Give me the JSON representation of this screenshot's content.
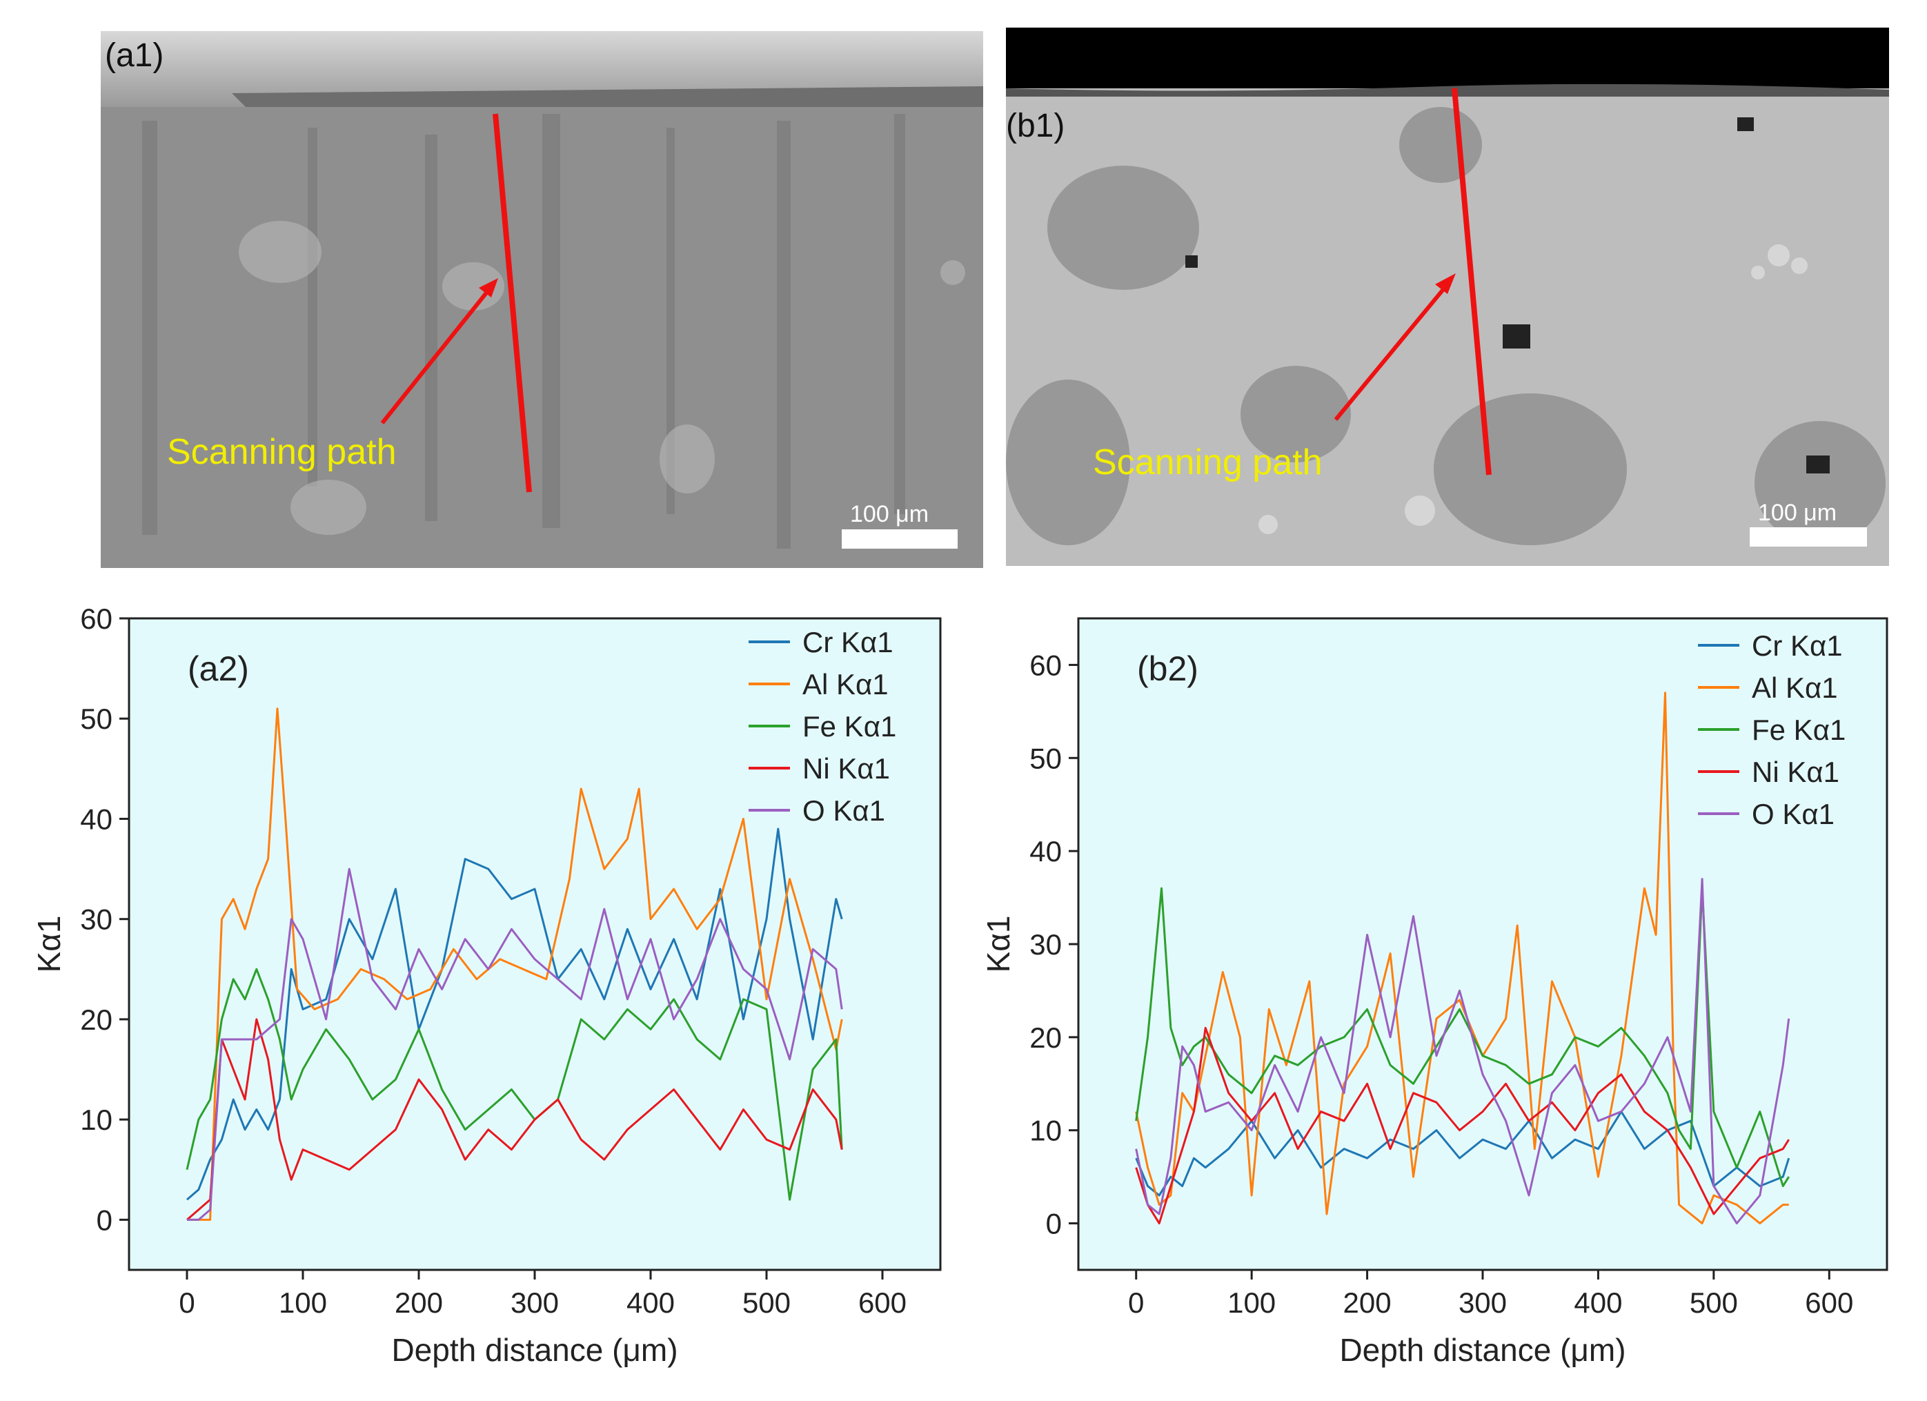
{
  "sem_panels": [
    {
      "label": "(a1)",
      "annotation": "Scanning path",
      "scale_bar": "100 μm"
    },
    {
      "label": "(b1)",
      "annotation": "Scanning path",
      "scale_bar": "100 μm"
    }
  ],
  "colors": {
    "Cr": "#1f77b4",
    "Al": "#ff7f0e",
    "Fe": "#2ca02c",
    "Ni": "#e8181f",
    "O": "#9b5fc0",
    "plot_bg": "#e3fafc",
    "scan_line": "#ee1111",
    "annotation": "#f2ee00"
  },
  "chart_data": [
    {
      "type": "line",
      "title": "(a2)",
      "xlabel": "Depth distance (μm)",
      "ylabel": "Kα1",
      "xlim": [
        -50,
        650
      ],
      "ylim": [
        -5,
        60
      ],
      "xticks": [
        0,
        100,
        200,
        300,
        400,
        500,
        600
      ],
      "yticks": [
        0,
        10,
        20,
        30,
        40,
        50,
        60
      ],
      "legend": "top-right",
      "series": [
        {
          "name": "Cr Kα1",
          "color": "#1f77b4",
          "x": [
            0,
            10,
            20,
            30,
            40,
            50,
            60,
            70,
            80,
            90,
            100,
            120,
            140,
            160,
            180,
            200,
            220,
            240,
            260,
            280,
            300,
            320,
            340,
            360,
            380,
            400,
            420,
            440,
            460,
            480,
            500,
            510,
            520,
            540,
            560,
            565
          ],
          "y": [
            2,
            3,
            6,
            8,
            12,
            9,
            11,
            9,
            12,
            25,
            21,
            22,
            30,
            26,
            33,
            19,
            25,
            36,
            35,
            32,
            33,
            24,
            27,
            22,
            29,
            23,
            28,
            22,
            33,
            20,
            30,
            39,
            30,
            18,
            32,
            30
          ]
        },
        {
          "name": "Al Kα1",
          "color": "#ff7f0e",
          "x": [
            0,
            10,
            20,
            30,
            40,
            50,
            60,
            70,
            78,
            85,
            95,
            110,
            130,
            150,
            170,
            190,
            210,
            230,
            250,
            270,
            290,
            310,
            330,
            340,
            360,
            380,
            390,
            400,
            420,
            440,
            460,
            480,
            500,
            520,
            540,
            560,
            565
          ],
          "y": [
            0,
            0,
            0,
            30,
            32,
            29,
            33,
            36,
            51,
            40,
            23,
            21,
            22,
            25,
            24,
            22,
            23,
            27,
            24,
            26,
            25,
            24,
            34,
            43,
            35,
            38,
            43,
            30,
            33,
            29,
            32,
            40,
            22,
            34,
            26,
            17,
            20
          ]
        },
        {
          "name": "Fe Kα1",
          "color": "#2ca02c",
          "x": [
            0,
            10,
            20,
            30,
            40,
            50,
            60,
            70,
            80,
            90,
            100,
            120,
            140,
            160,
            180,
            200,
            220,
            240,
            260,
            280,
            300,
            320,
            340,
            360,
            380,
            400,
            420,
            440,
            460,
            480,
            500,
            520,
            540,
            560,
            565
          ],
          "y": [
            5,
            10,
            12,
            20,
            24,
            22,
            25,
            22,
            18,
            12,
            15,
            19,
            16,
            12,
            14,
            19,
            13,
            9,
            11,
            13,
            10,
            12,
            20,
            18,
            21,
            19,
            22,
            18,
            16,
            22,
            21,
            2,
            15,
            18,
            7
          ]
        },
        {
          "name": "Ni Kα1",
          "color": "#e8181f",
          "x": [
            0,
            10,
            20,
            30,
            40,
            50,
            60,
            70,
            80,
            90,
            100,
            120,
            140,
            160,
            180,
            200,
            220,
            240,
            260,
            280,
            300,
            320,
            340,
            360,
            380,
            400,
            420,
            440,
            460,
            480,
            500,
            520,
            540,
            560,
            565
          ],
          "y": [
            0,
            1,
            2,
            18,
            15,
            12,
            20,
            16,
            8,
            4,
            7,
            6,
            5,
            7,
            9,
            14,
            11,
            6,
            9,
            7,
            10,
            12,
            8,
            6,
            9,
            11,
            13,
            10,
            7,
            11,
            8,
            7,
            13,
            10,
            7
          ]
        },
        {
          "name": "O Kα1",
          "color": "#9b5fc0",
          "x": [
            0,
            10,
            20,
            30,
            40,
            50,
            60,
            70,
            80,
            90,
            100,
            120,
            140,
            160,
            180,
            200,
            220,
            240,
            260,
            280,
            300,
            320,
            340,
            360,
            380,
            400,
            420,
            440,
            460,
            480,
            500,
            520,
            540,
            560,
            565
          ],
          "y": [
            0,
            0,
            1,
            18,
            18,
            18,
            18,
            19,
            20,
            30,
            28,
            20,
            35,
            24,
            21,
            27,
            23,
            28,
            25,
            29,
            26,
            24,
            22,
            31,
            22,
            28,
            20,
            24,
            30,
            25,
            23,
            16,
            27,
            25,
            21
          ]
        }
      ]
    },
    {
      "type": "line",
      "title": "(b2)",
      "xlabel": "Depth distance (μm)",
      "ylabel": "Kα1",
      "xlim": [
        -50,
        650
      ],
      "ylim": [
        -5,
        65
      ],
      "xticks": [
        0,
        100,
        200,
        300,
        400,
        500,
        600
      ],
      "yticks": [
        0,
        10,
        20,
        30,
        40,
        50,
        60
      ],
      "legend": "top-right",
      "series": [
        {
          "name": "Cr Kα1",
          "color": "#1f77b4",
          "x": [
            0,
            10,
            20,
            30,
            40,
            50,
            60,
            80,
            100,
            120,
            140,
            160,
            180,
            200,
            220,
            240,
            260,
            280,
            300,
            320,
            340,
            360,
            380,
            400,
            420,
            440,
            460,
            480,
            500,
            520,
            540,
            560,
            565
          ],
          "y": [
            7,
            4,
            3,
            5,
            4,
            7,
            6,
            8,
            11,
            7,
            10,
            6,
            8,
            7,
            9,
            8,
            10,
            7,
            9,
            8,
            11,
            7,
            9,
            8,
            12,
            8,
            10,
            11,
            4,
            6,
            4,
            5,
            7
          ]
        },
        {
          "name": "Al Kα1",
          "color": "#ff7f0e",
          "x": [
            0,
            10,
            20,
            30,
            40,
            50,
            60,
            75,
            90,
            100,
            115,
            130,
            150,
            165,
            180,
            200,
            220,
            240,
            260,
            280,
            300,
            320,
            330,
            345,
            360,
            380,
            400,
            420,
            440,
            450,
            458,
            465,
            470,
            490,
            500,
            520,
            540,
            560,
            565
          ],
          "y": [
            12,
            6,
            2,
            3,
            14,
            12,
            18,
            27,
            20,
            3,
            23,
            17,
            26,
            1,
            15,
            19,
            29,
            5,
            22,
            24,
            18,
            22,
            32,
            8,
            26,
            20,
            5,
            18,
            36,
            31,
            57,
            18,
            2,
            0,
            3,
            2,
            0,
            2,
            2
          ]
        },
        {
          "name": "Fe Kα1",
          "color": "#2ca02c",
          "x": [
            0,
            10,
            22,
            30,
            40,
            50,
            60,
            80,
            100,
            120,
            140,
            160,
            180,
            200,
            220,
            240,
            260,
            280,
            300,
            320,
            340,
            360,
            380,
            400,
            420,
            440,
            460,
            470,
            480,
            490,
            500,
            520,
            540,
            560,
            565
          ],
          "y": [
            11,
            20,
            36,
            21,
            17,
            19,
            20,
            16,
            14,
            18,
            17,
            19,
            20,
            23,
            17,
            15,
            19,
            23,
            18,
            17,
            15,
            16,
            20,
            19,
            21,
            18,
            14,
            10,
            8,
            36,
            12,
            6,
            12,
            4,
            5
          ]
        },
        {
          "name": "Ni Kα1",
          "color": "#e8181f",
          "x": [
            0,
            10,
            20,
            30,
            40,
            50,
            60,
            80,
            100,
            120,
            140,
            160,
            180,
            200,
            220,
            240,
            260,
            280,
            300,
            320,
            340,
            360,
            380,
            400,
            420,
            440,
            460,
            480,
            500,
            520,
            540,
            560,
            565
          ],
          "y": [
            6,
            2,
            0,
            4,
            8,
            12,
            21,
            14,
            11,
            14,
            8,
            12,
            11,
            15,
            8,
            14,
            13,
            10,
            12,
            15,
            11,
            13,
            10,
            14,
            16,
            12,
            10,
            6,
            1,
            4,
            7,
            8,
            9
          ]
        },
        {
          "name": "O Kα1",
          "color": "#9b5fc0",
          "x": [
            0,
            10,
            20,
            30,
            40,
            50,
            60,
            80,
            100,
            120,
            140,
            160,
            180,
            200,
            220,
            240,
            260,
            280,
            300,
            320,
            340,
            360,
            380,
            400,
            420,
            440,
            460,
            480,
            490,
            500,
            520,
            540,
            560,
            565
          ],
          "y": [
            8,
            2,
            1,
            7,
            19,
            17,
            12,
            13,
            10,
            17,
            12,
            20,
            14,
            31,
            20,
            33,
            18,
            25,
            16,
            11,
            3,
            14,
            17,
            11,
            12,
            15,
            20,
            12,
            37,
            4,
            0,
            3,
            17,
            22
          ]
        }
      ]
    }
  ]
}
